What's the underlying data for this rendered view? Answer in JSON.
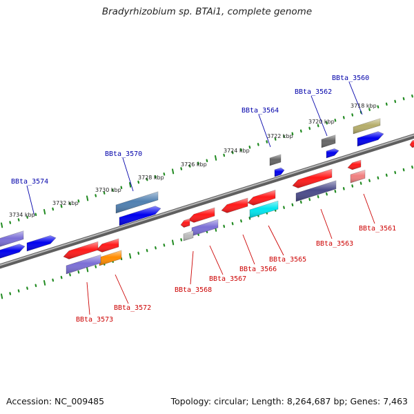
{
  "title": "Bradyrhizobium sp. BTAi1, complete genome",
  "footer": {
    "accession": "Accession: NC_009485",
    "topology": "Topology: circular; Length: 8,264,687 bp; Genes: 7,463"
  },
  "scale_labels": [
    "3718 kbp",
    "3720 kbp",
    "3722 kbp",
    "3724 kbp",
    "3726 kbp",
    "3728 kbp",
    "3730 kbp",
    "3732 kbp",
    "3734 kbp"
  ],
  "gene_labels": {
    "forward": [
      "BBta_3560",
      "BBta_3562",
      "BBta_3564",
      "BBta_3570",
      "BBta_3574"
    ],
    "reverse": [
      "BBta_3561",
      "BBta_3563",
      "BBta_3565",
      "BBta_3566",
      "BBta_3567",
      "BBta_3568",
      "BBta_3572",
      "BBta_3573"
    ]
  },
  "colors": {
    "forward_label": "#0000aa",
    "reverse_label": "#cc0000",
    "backbone": "#7a7a7a",
    "tick": "#228b22",
    "red": "#ff1a1a",
    "blue": "#0000ee",
    "lavender": "#7b6fd6",
    "cyan": "#00e5ee",
    "gray": "#666666",
    "olive": "#b5ad6a",
    "steel": "#4f7fb0",
    "orange": "#ff8c00",
    "pink": "#f08080",
    "slate": "#4a4a8a",
    "silver": "#bbbbbb"
  }
}
